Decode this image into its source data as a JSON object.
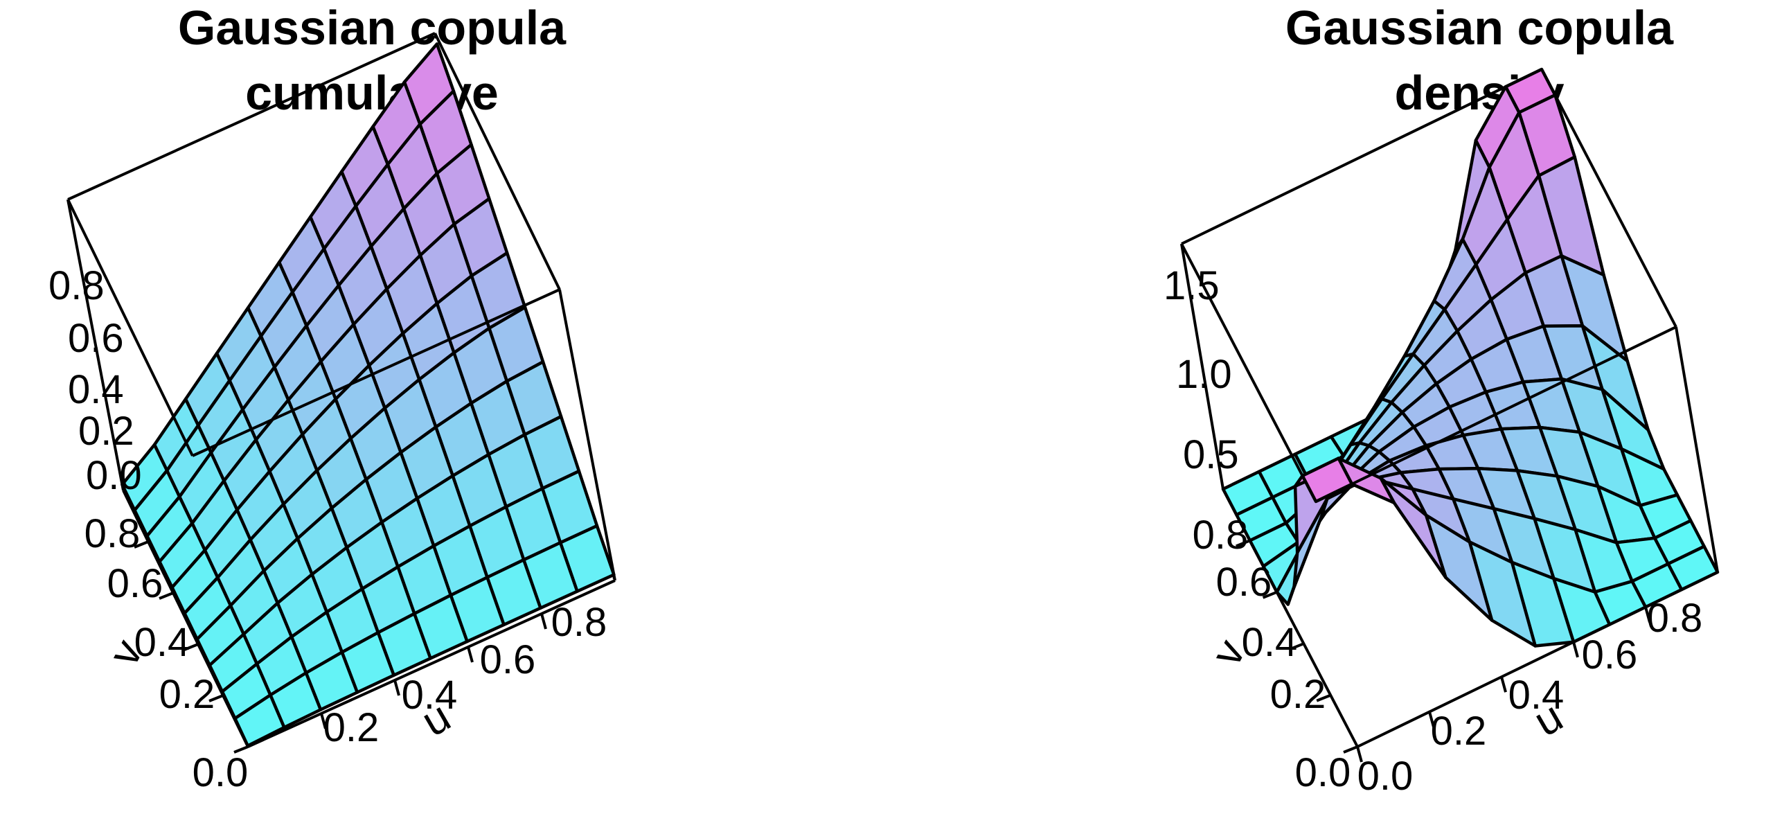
{
  "chart_data": [
    {
      "type": "surface3d",
      "title": [
        "Gaussian copula",
        "cumulative"
      ],
      "xlabel": "u",
      "ylabel": "v",
      "zlabel": "",
      "x_ticks": [
        "0.0",
        "0.2",
        "0.4",
        "0.6",
        "0.8"
      ],
      "y_ticks": [
        "0.0",
        "0.2",
        "0.4",
        "0.6",
        "0.8"
      ],
      "z_ticks": [
        "0.0",
        "0.2",
        "0.4",
        "0.6",
        "0.8"
      ],
      "xlim": [
        0,
        1
      ],
      "ylim": [
        0,
        1
      ],
      "zlim": [
        0,
        1
      ],
      "grid_n": 10,
      "rho": 0.5,
      "function": "copula_cdf",
      "colors": {
        "low": "#5ff7f7",
        "high": "#e77fe7"
      }
    },
    {
      "type": "surface3d",
      "title": [
        "Gaussian copula",
        "density"
      ],
      "xlabel": "u",
      "ylabel": "v",
      "zlabel": "",
      "x_ticks": [
        "0.0",
        "0.2",
        "0.4",
        "0.6",
        "0.8"
      ],
      "y_ticks": [
        "0.0",
        "0.2",
        "0.4",
        "0.6",
        "0.8"
      ],
      "z_ticks": [
        "0.5",
        "1.0",
        "1.5"
      ],
      "xlim": [
        0,
        1
      ],
      "ylim": [
        0,
        1
      ],
      "zlim": [
        0.5,
        1.8
      ],
      "grid_n": 10,
      "rho": 0.5,
      "function": "copula_density",
      "colors": {
        "low": "#5ff7f7",
        "high": "#e77fe7"
      }
    }
  ]
}
